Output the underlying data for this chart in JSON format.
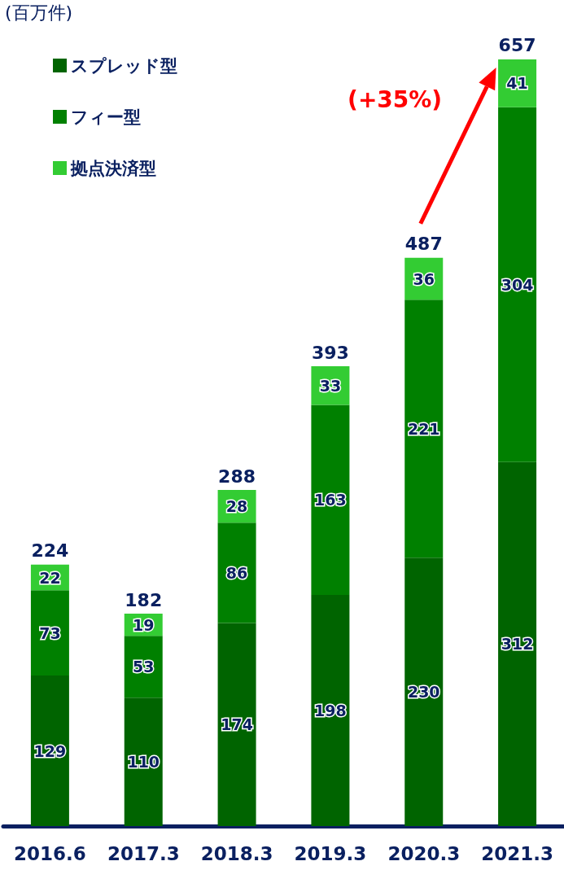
{
  "chart_data": {
    "type": "bar",
    "stacked": true,
    "ylabel": "(百万件)",
    "categories": [
      "2016.6",
      "2017.3",
      "2018.3",
      "2019.3",
      "2020.3",
      "2021.3"
    ],
    "series": [
      {
        "name": "スプレッド型",
        "color": "#006400",
        "values": [
          129,
          110,
          174,
          198,
          230,
          312
        ]
      },
      {
        "name": "フィー型",
        "color": "#008000",
        "values": [
          73,
          53,
          86,
          163,
          221,
          304
        ]
      },
      {
        "name": "拠点決済型",
        "color": "#33cc33",
        "values": [
          22,
          19,
          28,
          33,
          36,
          41
        ]
      }
    ],
    "totals": [
      "224",
      "182",
      "288",
      "393",
      "487",
      "657"
    ],
    "data_labels": true,
    "legend": "top left",
    "annotations": [
      "(+35%)"
    ]
  }
}
